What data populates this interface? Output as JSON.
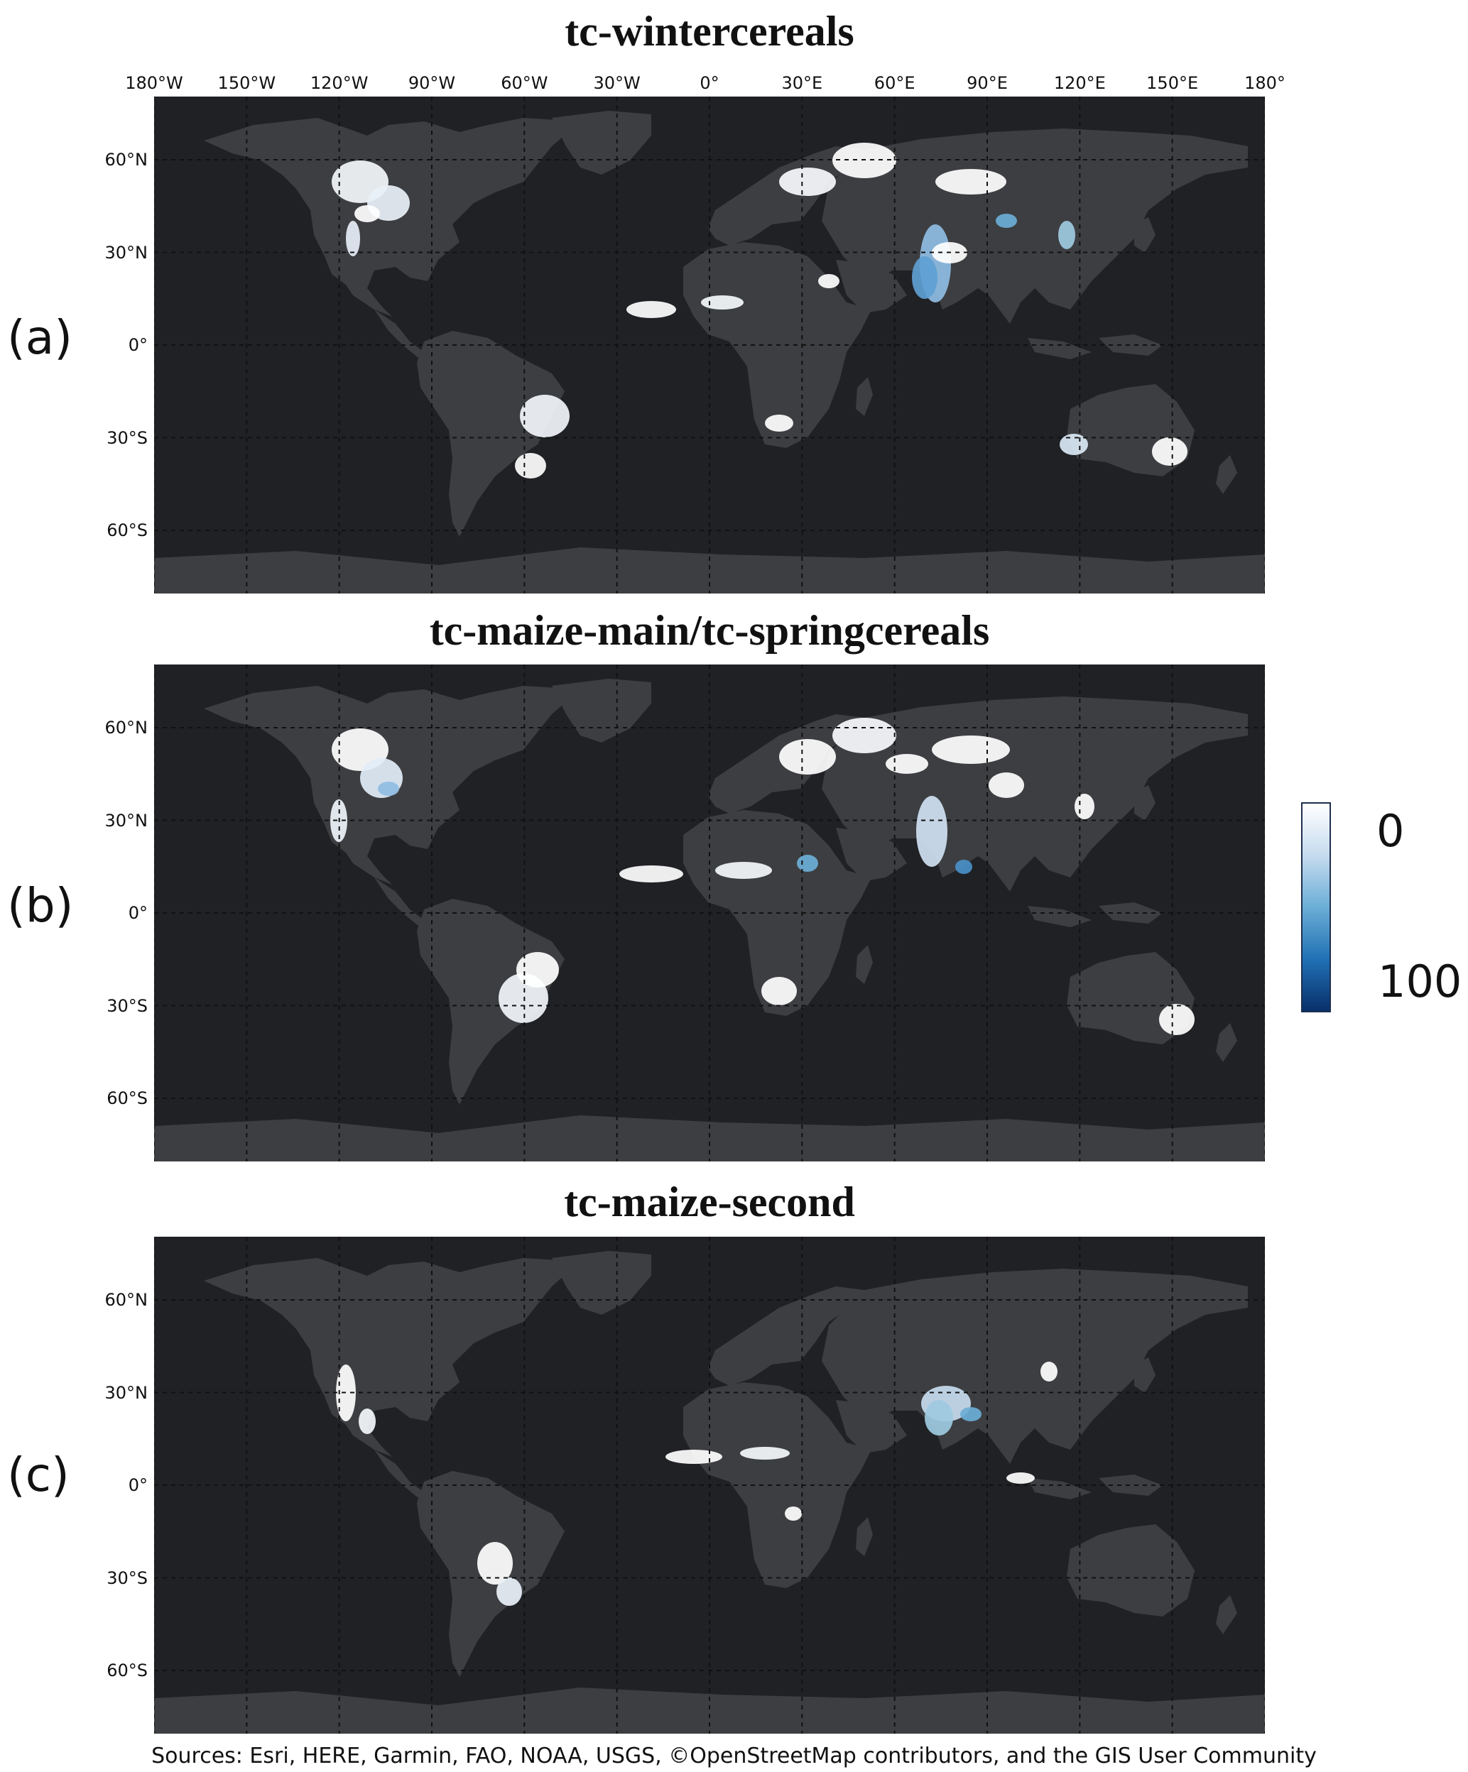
{
  "panels": [
    {
      "letter": "(a)",
      "title": "tc-wintercereals"
    },
    {
      "letter": "(b)",
      "title": "tc-maize-main/tc-springcereals"
    },
    {
      "letter": "(c)",
      "title": "tc-maize-second"
    }
  ],
  "axes": {
    "longitude_ticks": [
      "180°W",
      "150°W",
      "120°W",
      "90°W",
      "60°W",
      "30°W",
      "0°",
      "30°E",
      "60°E",
      "90°E",
      "120°E",
      "150°E",
      "180°"
    ],
    "longitude_values": [
      -180,
      -150,
      -120,
      -90,
      -60,
      -30,
      0,
      30,
      60,
      90,
      120,
      150,
      180
    ],
    "latitude_ticks": [
      "60°N",
      "30°N",
      "0°",
      "30°S",
      "60°S"
    ],
    "latitude_values": [
      60,
      30,
      0,
      -30,
      -60
    ]
  },
  "colorbar": {
    "min_label": "0",
    "max_label": "100",
    "min_value": 0,
    "max_value": 100,
    "colors": [
      "#ffffff",
      "#c6dbef",
      "#6baed6",
      "#2171b5",
      "#08306b"
    ]
  },
  "colors": {
    "ocean": "#202125",
    "land": "#3d3e41",
    "graticule": "#111111"
  },
  "source": "Sources: Esri, HERE, Garmin, FAO, NOAA, USGS, ©OpenStreetMap contributors, and the GIS User Community"
}
